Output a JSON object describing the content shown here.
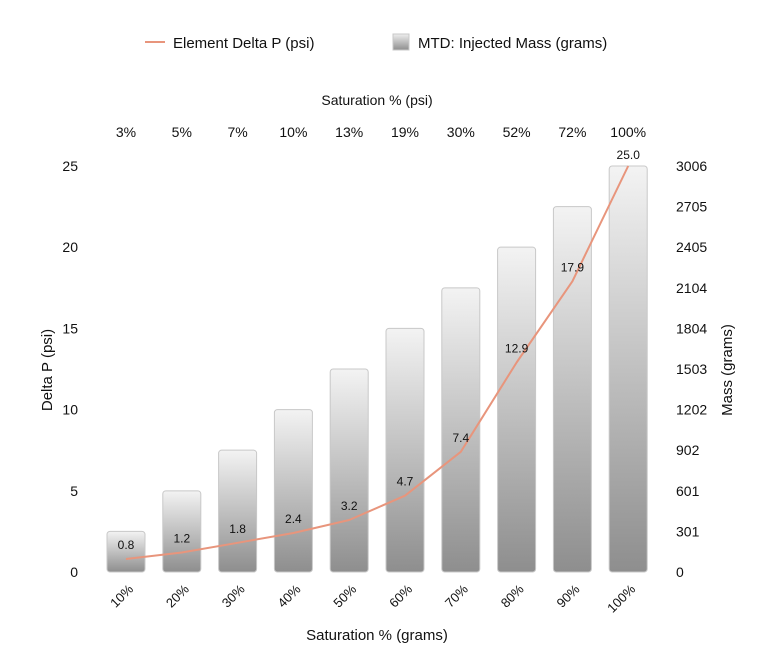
{
  "legend": {
    "line_label": "Element Delta P (psi)",
    "bar_label": "MTD: Injected Mass (grams)"
  },
  "chart_data": {
    "type": "bar",
    "categories": [
      "10%",
      "20%",
      "30%",
      "40%",
      "50%",
      "60%",
      "70%",
      "80%",
      "90%",
      "100%"
    ],
    "top_categories": [
      "3%",
      "5%",
      "7%",
      "10%",
      "13%",
      "19%",
      "30%",
      "52%",
      "72%",
      "100%"
    ],
    "xlabel": "Saturation % (grams)",
    "top_xlabel": "Saturation % (psi)",
    "ylabel_left": "Delta P (psi)",
    "ylabel_right": "Mass (grams)",
    "left_ticks": [
      "0",
      "5",
      "10",
      "15",
      "20",
      "25"
    ],
    "right_ticks": [
      "0",
      "301",
      "601",
      "902",
      "1202",
      "1503",
      "1804",
      "2104",
      "2405",
      "2705",
      "3006"
    ],
    "left_ylim": [
      0,
      25
    ],
    "right_ylim": [
      0,
      3006
    ],
    "series": [
      {
        "name": "MTD: Injected Mass (grams)",
        "type": "bar",
        "axis": "right",
        "values": [
          301,
          601,
          902,
          1202,
          1503,
          1804,
          2104,
          2405,
          2705,
          3006
        ]
      },
      {
        "name": "Element Delta P (psi)",
        "type": "line",
        "axis": "left",
        "values": [
          0.8,
          1.2,
          1.8,
          2.4,
          3.2,
          4.7,
          7.4,
          12.9,
          17.9,
          25.0
        ],
        "data_labels": [
          "0.8",
          "1.2",
          "1.8",
          "2.4",
          "3.2",
          "4.7",
          "7.4",
          "12.9",
          "17.9",
          "25.0"
        ]
      }
    ],
    "colors": {
      "line": "#e8957c",
      "bar_top": "#f2f2f2",
      "bar_bottom": "#909090",
      "bar_stroke": "#c8c8c8"
    },
    "grid": false,
    "legend_position": "top"
  }
}
